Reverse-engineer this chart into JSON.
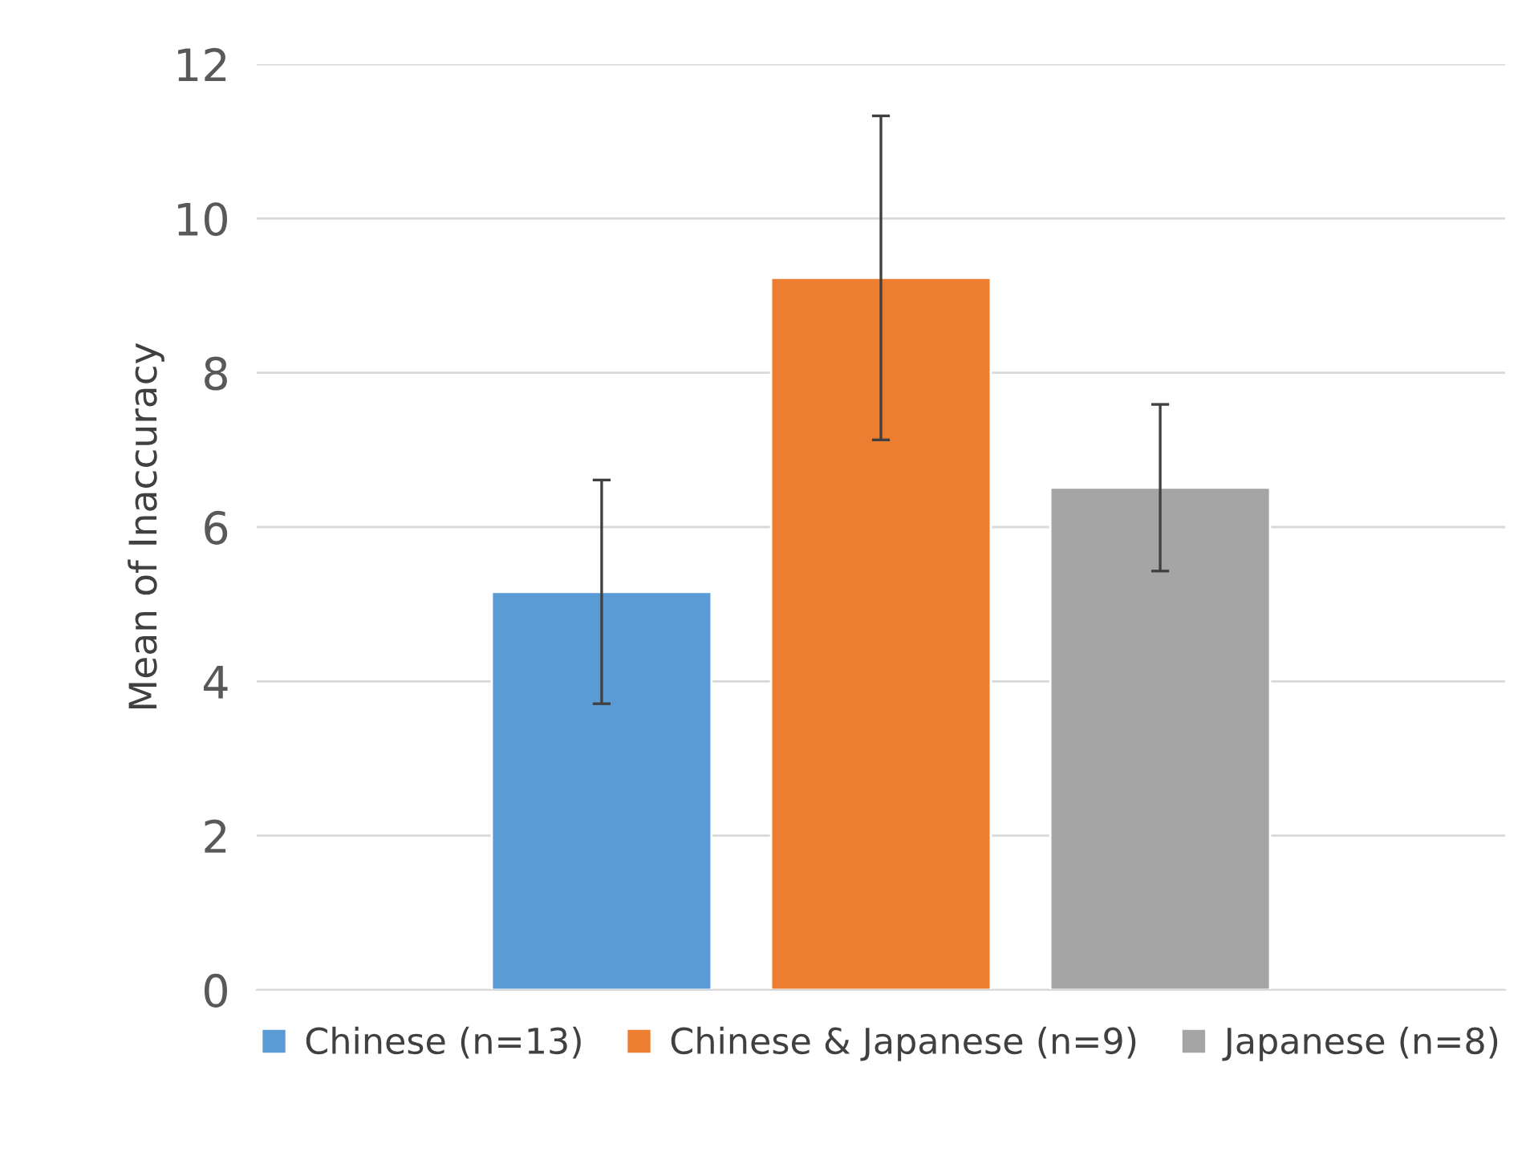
{
  "chart_data": {
    "type": "bar",
    "ylabel": "Mean of Inaccuracy",
    "categories": [
      null
    ],
    "series": [
      {
        "name": "Chinese (n=13)",
        "color": "#5b9bd5",
        "values": [
          5.16
        ],
        "errors": [
          1.45
        ]
      },
      {
        "name": "Chinese & Japanese (n=9)",
        "color": "#ed7d31",
        "values": [
          9.23
        ],
        "errors": [
          2.1
        ]
      },
      {
        "name": "Japanese (n=8)",
        "color": "#a5a5a5",
        "values": [
          6.51
        ],
        "errors": [
          1.08
        ]
      }
    ],
    "ylim": [
      0,
      12
    ],
    "yticks": [
      0,
      2,
      4,
      6,
      8,
      10,
      12
    ],
    "grid": "y",
    "legend": "bottom"
  }
}
